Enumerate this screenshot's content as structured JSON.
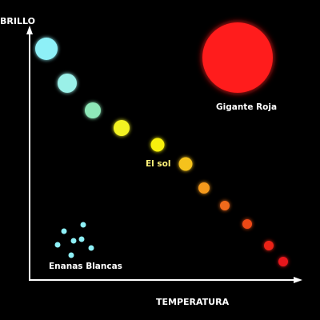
{
  "axes": {
    "y_label": "BRILLO",
    "x_label": "TEMPERATURA"
  },
  "labels": {
    "giant": "Gigante Roja",
    "sun": "El sol",
    "dwarfs": "Enanas Blancas"
  },
  "colors": {
    "background": "#000000",
    "axis": "#ffffff",
    "text": "#ffffff",
    "sun_label": "#fff27a",
    "giant": "#ff1a1a",
    "white_dwarf": "#8ef0f7",
    "main_sequence": [
      "#8ef0f7",
      "#9af0e8",
      "#8ee8b8",
      "#f3f323",
      "#f7f00a",
      "#f5c21a",
      "#f59a1c",
      "#f06a1a",
      "#ef4a17",
      "#ec2318",
      "#e8161a"
    ]
  }
}
